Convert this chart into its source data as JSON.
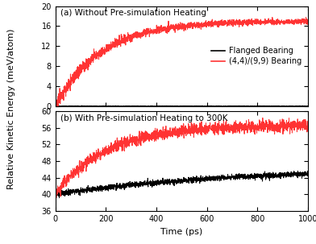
{
  "title_a": "(a) Without Pre-simulation Heating",
  "title_b": "(b) With Pre-simulation Heating to 300K",
  "xlabel": "Time (ps)",
  "ylabel": "Relative Kinetic Energy (meV/atom)",
  "xlim": [
    0,
    1000
  ],
  "ylim_a": [
    0,
    20
  ],
  "ylim_b": [
    36,
    60
  ],
  "yticks_a": [
    0,
    4,
    8,
    12,
    16,
    20
  ],
  "yticks_b": [
    36,
    40,
    44,
    48,
    52,
    56,
    60
  ],
  "xticks": [
    0,
    200,
    400,
    600,
    800,
    1000
  ],
  "flanged_color": "#000000",
  "bearing_color": "#FF3333",
  "legend_labels": [
    "Flanged Bearing",
    "(4,4)/(9,9) Bearing"
  ],
  "figsize": [
    3.92,
    3.03
  ],
  "dpi": 100,
  "n_points": 2000,
  "lw": 0.7,
  "title_fontsize": 7.5,
  "tick_fontsize": 7,
  "label_fontsize": 8,
  "legend_fontsize": 7
}
